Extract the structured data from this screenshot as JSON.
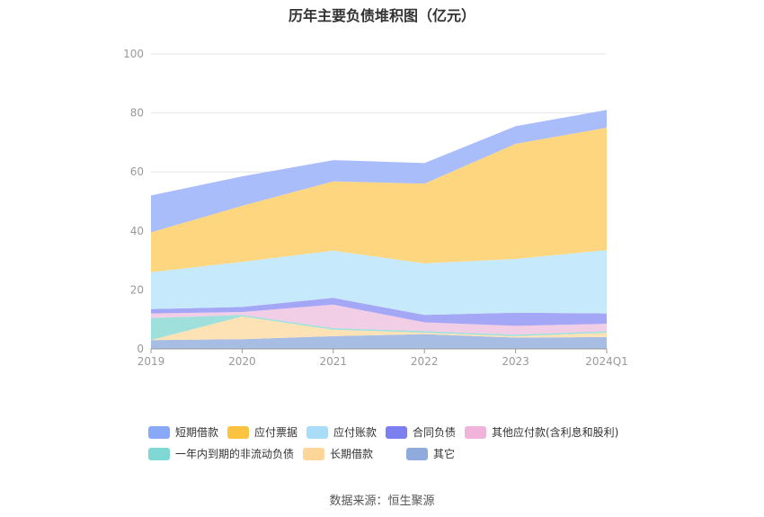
{
  "title": "历年主要负债堆积图（亿元）",
  "source": "数据来源：恒生聚源",
  "colors": {
    "grid": "#e6e6e6",
    "axis": "#999999",
    "tick_text": "#999999"
  },
  "chart_data": {
    "type": "area",
    "stacked": true,
    "categories": [
      "2019",
      "2020",
      "2021",
      "2022",
      "2023",
      "2024Q1"
    ],
    "ylim": [
      0,
      100
    ],
    "yticks": [
      0,
      20,
      40,
      60,
      80,
      100
    ],
    "grid": true,
    "legend_position": "bottom",
    "series": [
      {
        "name": "其它",
        "values": [
          3.0,
          3.3,
          4.3,
          5.0,
          3.8,
          4.0
        ],
        "color": "#a7bde3",
        "legend_color": "#8faadc"
      },
      {
        "name": "长期借款",
        "values": [
          0,
          7.7,
          2.2,
          0.5,
          0.5,
          1.5
        ],
        "color": "#fde2b6",
        "legend_color": "#ffd699"
      },
      {
        "name": "一年内到期的非流动负债",
        "values": [
          7.5,
          0.5,
          0.5,
          0.5,
          0.5,
          0.5
        ],
        "color": "#9fe0dc",
        "legend_color": "#7fd8d3"
      },
      {
        "name": "其他应付款(含利息和股利)",
        "values": [
          1.5,
          1.0,
          8.0,
          3.0,
          3.0,
          2.5
        ],
        "color": "#f1cde6",
        "legend_color": "#f0b3da"
      },
      {
        "name": "合同负债",
        "values": [
          1.5,
          1.7,
          2.3,
          2.5,
          4.5,
          3.5
        ],
        "color": "#a4a6f6",
        "legend_color": "#7b7ff0"
      },
      {
        "name": "应付账款",
        "values": [
          12.5,
          15.3,
          16.0,
          17.5,
          18.2,
          21.5
        ],
        "color": "#c6e9fb",
        "legend_color": "#a8dcf7"
      },
      {
        "name": "应付票据",
        "values": [
          13.5,
          19.0,
          23.5,
          27.0,
          39.0,
          41.5
        ],
        "color": "#fed67f",
        "legend_color": "#fcc341"
      },
      {
        "name": "短期借款",
        "values": [
          12.5,
          10.0,
          7.2,
          7.0,
          6.0,
          6.0
        ],
        "color": "#a9bdfb",
        "legend_color": "#8aa8f8"
      }
    ]
  },
  "legend": [
    {
      "name": "短期借款",
      "color": "#8aa8f8"
    },
    {
      "name": "应付票据",
      "color": "#fcc341"
    },
    {
      "name": "应付账款",
      "color": "#a8dcf7"
    },
    {
      "name": "合同负债",
      "color": "#7b7ff0"
    },
    {
      "name": "其他应付款(含利息和股利)",
      "color": "#f0b3da"
    },
    {
      "name": "一年内到期的非流动负债",
      "color": "#7fd8d3"
    },
    {
      "name": "长期借款",
      "color": "#ffd699"
    },
    {
      "name": "其它",
      "color": "#8faadc"
    }
  ]
}
